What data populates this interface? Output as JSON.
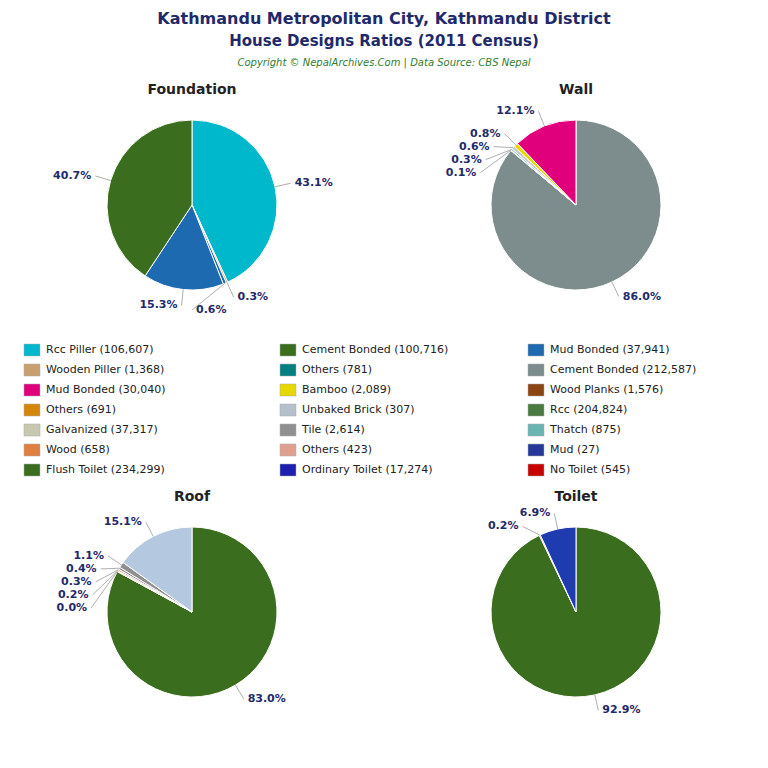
{
  "title": "Kathmandu Metropolitan City, Kathmandu District",
  "subtitle": "House Designs Ratios (2011 Census)",
  "annotations": [
    "Copyright © NepalArchives.Com | Data Source: CBS Nepal"
  ],
  "chart_data": [
    {
      "type": "pie",
      "title": "Foundation",
      "values": [
        43.1,
        0.3,
        0.6,
        15.3,
        40.7
      ],
      "value_labels": [
        "43.1%",
        "0.3%",
        "0.6%",
        "15.3%",
        "40.7%"
      ],
      "colors": [
        "#00b8cc",
        "#d4870a",
        "#1e6ab0",
        "#1e6ab0",
        "#3a6e1e"
      ],
      "data_labels": true
    },
    {
      "type": "pie",
      "title": "Wall",
      "values": [
        86.0,
        0.1,
        0.3,
        0.6,
        0.8,
        12.1
      ],
      "value_labels": [
        "86.0%",
        "0.1%",
        "0.3%",
        "0.6%",
        "0.8%",
        "12.1%"
      ],
      "colors": [
        "#7d8c8c",
        "#b0b090",
        "#6ab4b4",
        "#c8c8c8",
        "#e6d800",
        "#e0007c"
      ],
      "data_labels": true
    },
    {
      "type": "pie",
      "title": "Roof",
      "values": [
        83.0,
        0.0,
        0.2,
        0.3,
        0.4,
        1.1,
        15.1
      ],
      "value_labels": [
        "83.0%",
        "0.0%",
        "0.2%",
        "0.3%",
        "0.4%",
        "1.1%",
        "15.1%"
      ],
      "colors": [
        "#3a6e1e",
        "#208080",
        "#c86464",
        "#e09060",
        "#808080",
        "#909090",
        "#b4c8e0"
      ],
      "data_labels": true
    },
    {
      "type": "pie",
      "title": "Toilet",
      "values": [
        92.9,
        0.2,
        6.9
      ],
      "value_labels": [
        "92.9%",
        "0.2%",
        "6.9%"
      ],
      "colors": [
        "#3a6e1e",
        "#c80000",
        "#1e3cb0"
      ],
      "data_labels": true
    },
    {
      "type": "legend",
      "categories": [
        "Rcc Piller (106,607)",
        "Wooden Piller (1,368)",
        "Mud Bonded (30,040)",
        "Others (691)",
        "Galvanized (37,317)",
        "Wood (658)",
        "Flush Toilet (234,299)",
        "Cement Bonded (100,716)",
        "Others (781)",
        "Bamboo (2,089)",
        "Unbaked Brick (307)",
        "Tile (2,614)",
        "Others (423)",
        "Ordinary Toilet (17,274)",
        "Mud Bonded (37,941)",
        "Cement Bonded (212,587)",
        "Wood Planks (1,576)",
        "Rcc (204,824)",
        "Thatch (875)",
        "Mud (27)",
        "No Toilet (545)"
      ],
      "colors": [
        "#00b8cc",
        "#c8a070",
        "#e0007c",
        "#d4870a",
        "#c8c8b0",
        "#e08040",
        "#3a6e1e",
        "#3a6e1e",
        "#008080",
        "#e6d800",
        "#b4c0cc",
        "#909090",
        "#e0a090",
        "#1e1eb0",
        "#1e6ab0",
        "#7d8c8c",
        "#8b4513",
        "#4a7a40",
        "#6ab4b4",
        "#283898",
        "#c80000"
      ]
    }
  ]
}
